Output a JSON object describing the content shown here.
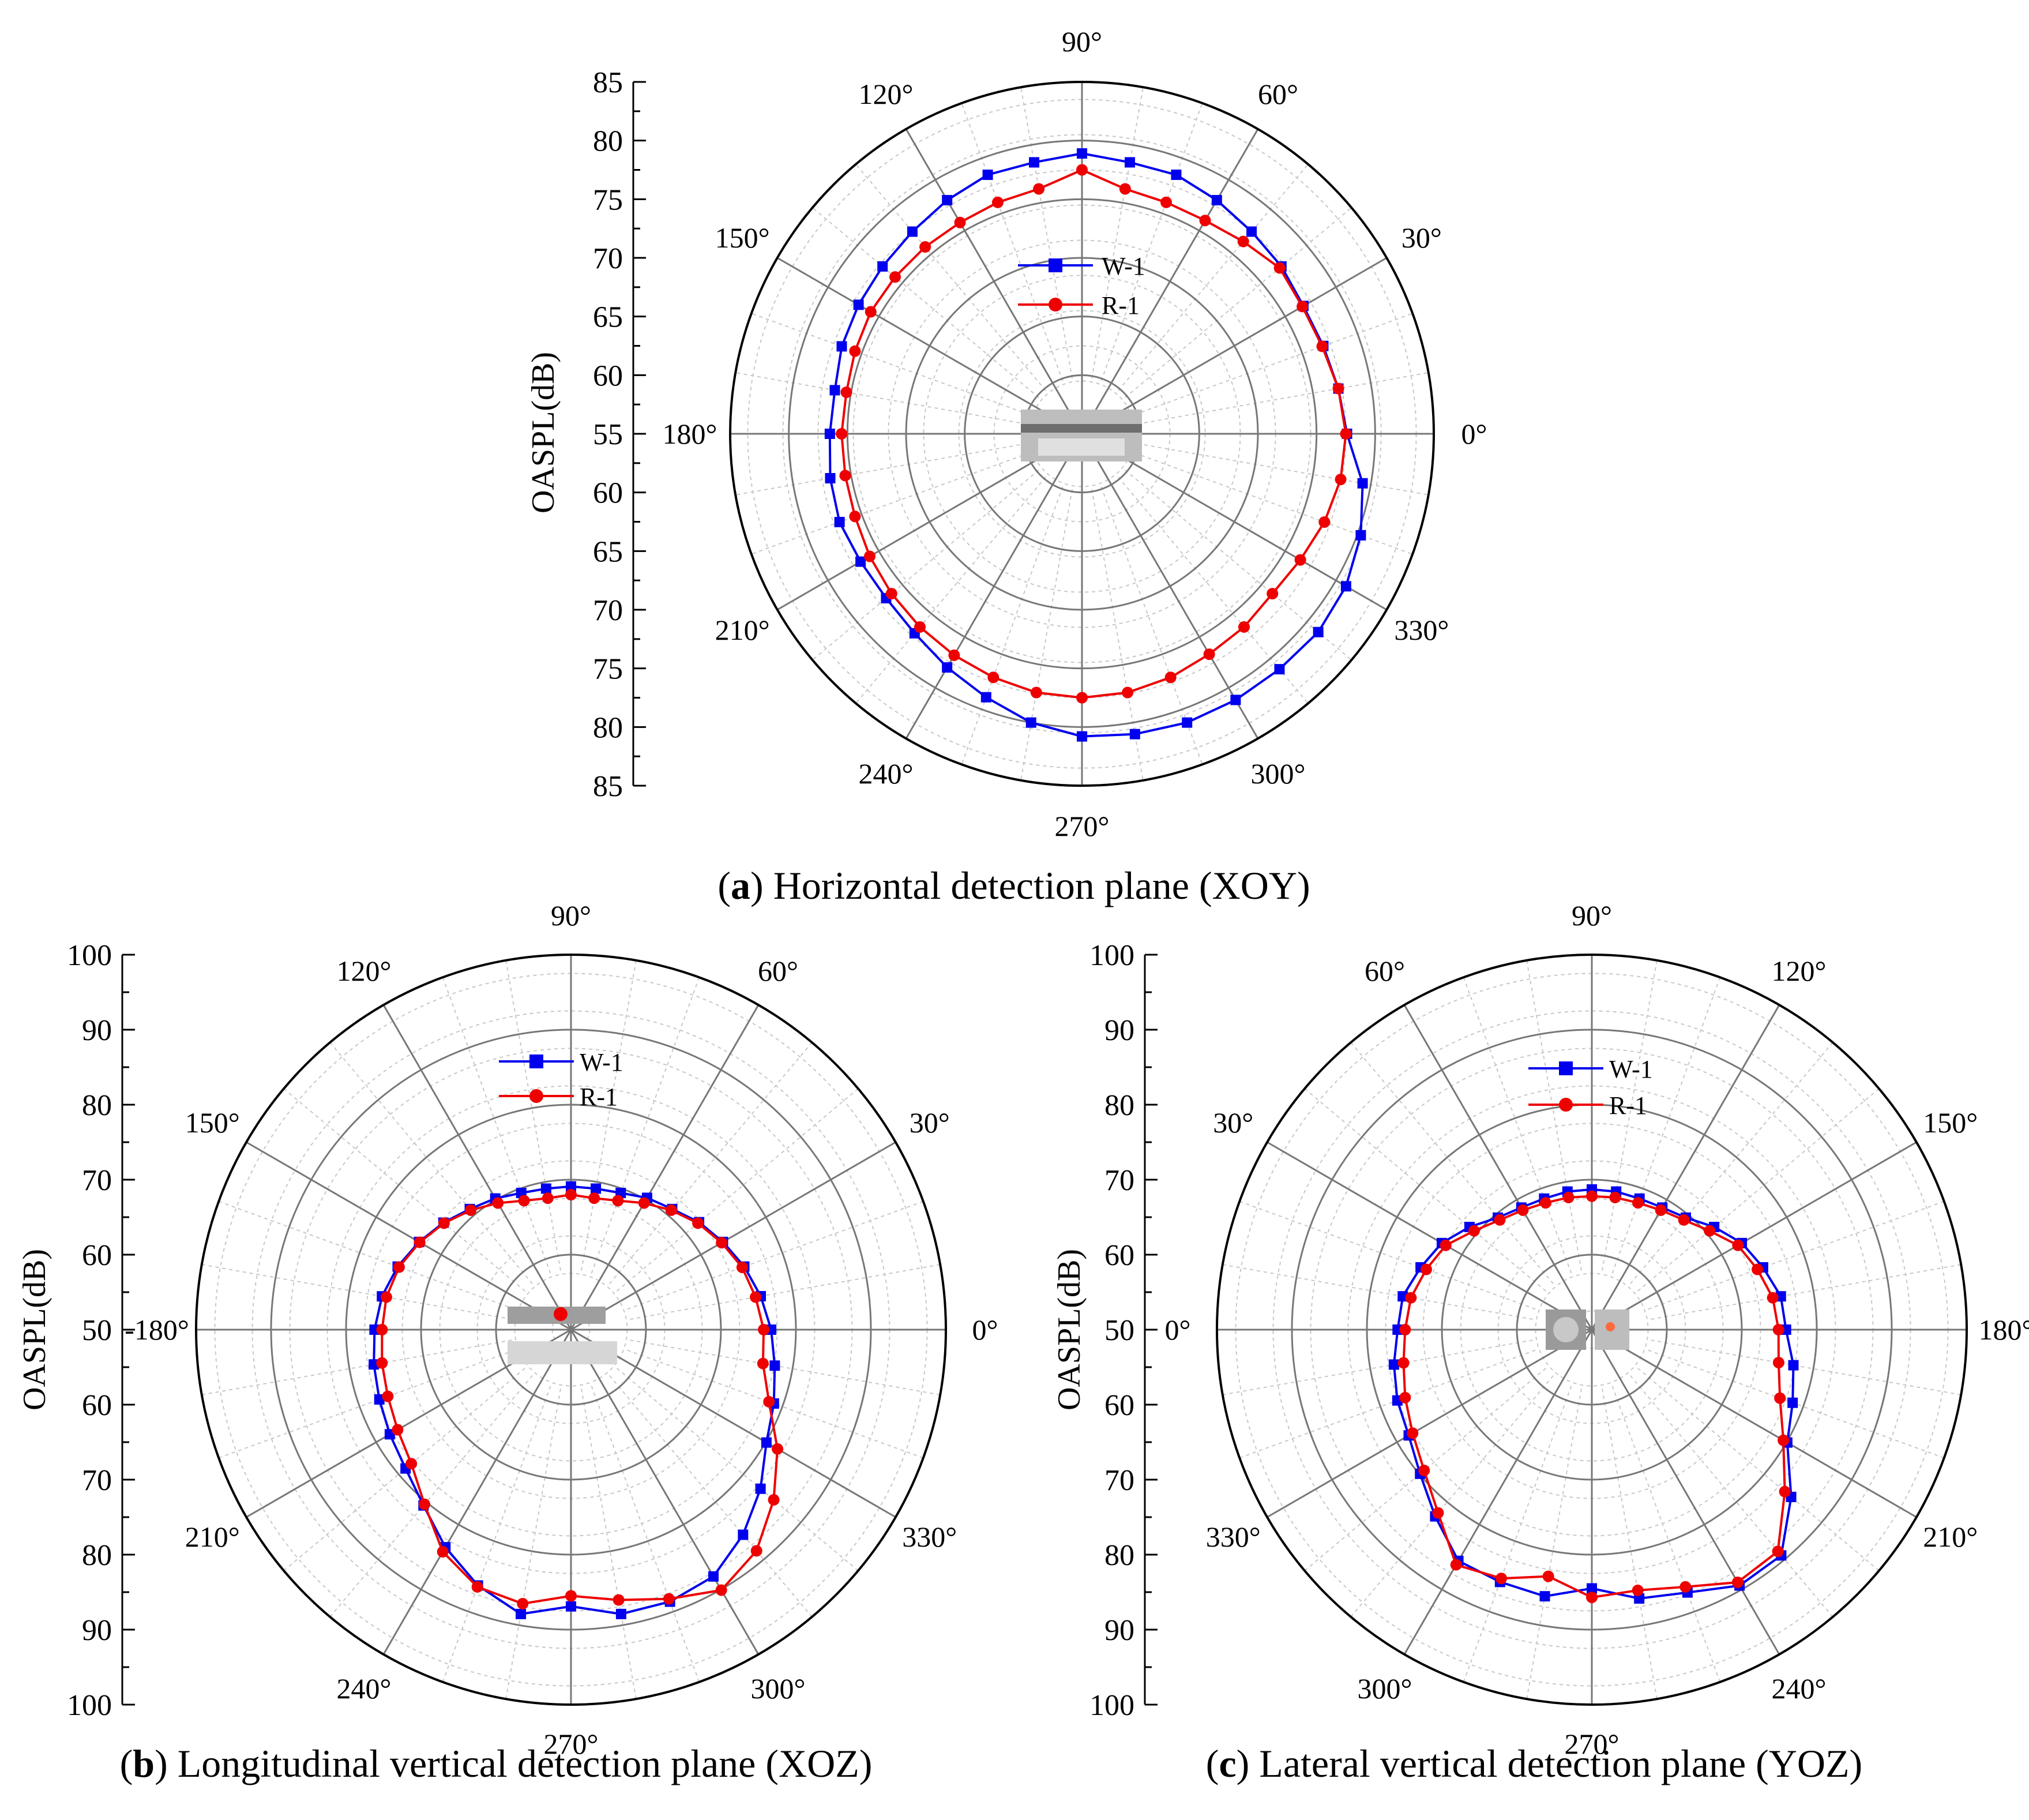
{
  "chart_data": [
    {
      "id": "a",
      "type": "polar-line",
      "caption_letter": "a",
      "caption_text": "Horizontal detection plane (XOY)",
      "ylabel": "OASPL(dB)",
      "r_min": 55,
      "r_max": 85,
      "axis_ticks_top": [
        "85",
        "80",
        "75",
        "70",
        "65",
        "60",
        "55"
      ],
      "axis_ticks_bottom": [
        "60",
        "65",
        "70",
        "75",
        "80",
        "85"
      ],
      "grid_rings": [
        60,
        65,
        70,
        75,
        80
      ],
      "angle_labels": [
        {
          "angle": 0,
          "text": "0°"
        },
        {
          "angle": 30,
          "text": "30°"
        },
        {
          "angle": 60,
          "text": "60°"
        },
        {
          "angle": 90,
          "text": "90°"
        },
        {
          "angle": 120,
          "text": "120°"
        },
        {
          "angle": 150,
          "text": "150°"
        },
        {
          "angle": 180,
          "text": "180°"
        },
        {
          "angle": 210,
          "text": "210°"
        },
        {
          "angle": 240,
          "text": "240°"
        },
        {
          "angle": 270,
          "text": "270°"
        },
        {
          "angle": 300,
          "text": "300°"
        },
        {
          "angle": 330,
          "text": "330°"
        }
      ],
      "legend": [
        "W-1",
        "R-1"
      ],
      "series": [
        {
          "name": "W-1",
          "color": "#0000ee",
          "marker": "square",
          "angles": [
            0,
            10,
            20,
            30,
            40,
            50,
            60,
            70,
            80,
            90,
            100,
            110,
            120,
            130,
            140,
            150,
            160,
            170,
            180,
            190,
            200,
            210,
            220,
            230,
            240,
            250,
            260,
            270,
            280,
            290,
            300,
            310,
            320,
            330,
            340,
            350
          ],
          "values": [
            77.6,
            77.2,
            76.9,
            76.8,
            77.2,
            77.5,
            78.0,
            78.5,
            78.5,
            78.9,
            78.5,
            78.5,
            78.0,
            77.5,
            77.2,
            77.0,
            76.8,
            76.4,
            76.5,
            76.8,
            77.0,
            76.8,
            76.8,
            77.2,
            78.0,
            78.9,
            80.0,
            80.8,
            81.0,
            81.2,
            81.2,
            81.2,
            81.3,
            81.0,
            80.3,
            79.3
          ]
        },
        {
          "name": "R-1",
          "color": "#ee0000",
          "marker": "circle",
          "angles": [
            0,
            10,
            20,
            30,
            40,
            50,
            60,
            70,
            80,
            90,
            100,
            110,
            120,
            130,
            140,
            150,
            160,
            170,
            180,
            190,
            200,
            210,
            220,
            230,
            240,
            250,
            260,
            270,
            280,
            290,
            300,
            310,
            320,
            330,
            340,
            350
          ],
          "values": [
            77.5,
            77.2,
            76.8,
            76.7,
            77.0,
            76.4,
            76.0,
            76.0,
            76.2,
            77.5,
            76.2,
            76.0,
            75.8,
            75.8,
            75.8,
            75.8,
            75.6,
            75.4,
            75.5,
            75.5,
            75.6,
            75.9,
            76.2,
            76.5,
            76.8,
            77.1,
            77.4,
            77.5,
            77.4,
            77.1,
            76.7,
            76.5,
            76.2,
            76.5,
            77.0,
            77.4
          ]
        }
      ]
    },
    {
      "id": "b",
      "type": "polar-line",
      "caption_letter": "b",
      "caption_text": "Longitudinal vertical detection plane (XOZ)",
      "ylabel": "OASPL(dB)",
      "r_min": 50,
      "r_max": 100,
      "axis_ticks_top": [
        "100",
        "90",
        "80",
        "70",
        "60",
        "50"
      ],
      "axis_ticks_bottom": [
        "60",
        "70",
        "80",
        "90",
        "100"
      ],
      "grid_rings": [
        60,
        70,
        80,
        90
      ],
      "angle_labels": [
        {
          "angle": 0,
          "text": "0°"
        },
        {
          "angle": 30,
          "text": "30°"
        },
        {
          "angle": 60,
          "text": "60°"
        },
        {
          "angle": 90,
          "text": "90°"
        },
        {
          "angle": 120,
          "text": "120°"
        },
        {
          "angle": 150,
          "text": "150°"
        },
        {
          "angle": 180,
          "text": "-180°"
        },
        {
          "angle": 210,
          "text": "210°"
        },
        {
          "angle": 240,
          "text": "240°"
        },
        {
          "angle": 270,
          "text": "270°"
        },
        {
          "angle": 300,
          "text": "300°"
        },
        {
          "angle": 330,
          "text": "330°"
        }
      ],
      "legend": [
        "W-1",
        "R-1"
      ],
      "series": [
        {
          "name": "W-1",
          "color": "#0000ee",
          "marker": "square",
          "angles": [
            0,
            10,
            20,
            30,
            40,
            50,
            60,
            70,
            80,
            90,
            100,
            110,
            120,
            130,
            140,
            150,
            160,
            170,
            180,
            190,
            200,
            210,
            220,
            230,
            240,
            250,
            260,
            270,
            280,
            290,
            300,
            310,
            320,
            330,
            340,
            350
          ],
          "values": [
            76.7,
            75.7,
            74.6,
            73.4,
            72.3,
            71.0,
            70.3,
            69.4,
            69.1,
            69.1,
            69.1,
            69.4,
            70.2,
            71.0,
            72.2,
            73.4,
            74.6,
            75.6,
            76.2,
            76.7,
            77.2,
            77.9,
            78.8,
            80.6,
            83.5,
            86.3,
            88.5,
            86.9,
            88.5,
            88.6,
            88.0,
            85.7,
            83.0,
            80.1,
            78.8,
            77.6
          ]
        },
        {
          "name": "R-1",
          "color": "#ee0000",
          "marker": "circle",
          "angles": [
            0,
            10,
            20,
            30,
            40,
            50,
            60,
            70,
            80,
            90,
            100,
            110,
            120,
            130,
            140,
            150,
            160,
            170,
            180,
            190,
            200,
            210,
            220,
            230,
            240,
            250,
            260,
            270,
            280,
            290,
            300,
            310,
            320,
            330,
            340,
            350
          ],
          "values": [
            75.7,
            75.0,
            74.3,
            73.2,
            72.1,
            70.8,
            69.5,
            68.3,
            67.8,
            68.0,
            67.8,
            68.3,
            69.5,
            70.8,
            72.1,
            73.3,
            74.4,
            75.0,
            75.2,
            75.6,
            76.0,
            76.7,
            77.8,
            80.4,
            84.2,
            86.5,
            87.1,
            85.5,
            86.6,
            88.2,
            90.1,
            88.5,
            85.3,
            81.8,
            78.1,
            76.0
          ]
        }
      ]
    },
    {
      "id": "c",
      "type": "polar-line",
      "caption_letter": "c",
      "caption_text": "Lateral vertical detection plane (YOZ)",
      "ylabel": "OASPL(dB)",
      "r_min": 50,
      "r_max": 100,
      "axis_ticks_top": [
        "100",
        "90",
        "80",
        "70",
        "60",
        "50"
      ],
      "axis_ticks_bottom": [
        "60",
        "70",
        "80",
        "90",
        "100"
      ],
      "grid_rings": [
        60,
        70,
        80,
        90
      ],
      "angle_labels": [
        {
          "angle": 0,
          "text": "180°"
        },
        {
          "angle": 30,
          "text": "150°"
        },
        {
          "angle": 60,
          "text": "120°"
        },
        {
          "angle": 90,
          "text": "90°"
        },
        {
          "angle": 120,
          "text": "60°"
        },
        {
          "angle": 150,
          "text": "30°"
        },
        {
          "angle": 180,
          "text": "0°"
        },
        {
          "angle": 210,
          "text": "330°"
        },
        {
          "angle": 240,
          "text": "300°"
        },
        {
          "angle": 270,
          "text": "270°"
        },
        {
          "angle": 300,
          "text": "240°"
        },
        {
          "angle": 330,
          "text": "210°"
        }
      ],
      "legend": [
        "W-1",
        "R-1"
      ],
      "series": [
        {
          "name": "W-1",
          "color": "#0000ee",
          "marker": "square",
          "angles": [
            0,
            10,
            20,
            30,
            40,
            50,
            60,
            70,
            80,
            90,
            100,
            110,
            120,
            130,
            140,
            150,
            160,
            170,
            180,
            190,
            200,
            210,
            220,
            230,
            240,
            250,
            260,
            270,
            280,
            290,
            300,
            310,
            320,
            330,
            340,
            350
          ],
          "values": [
            75.9,
            75.6,
            74.3,
            73.1,
            71.3,
            69.5,
            68.8,
            68.6,
            68.7,
            68.7,
            68.7,
            68.6,
            68.8,
            69.5,
            71.3,
            73.1,
            74.3,
            75.6,
            75.9,
            76.8,
            77.6,
            78.2,
            79.9,
            82.5,
            85.6,
            85.8,
            86.1,
            84.5,
            86.4,
            87.3,
            89.4,
            89.3,
            84.7,
            80.1,
            78.5,
            77.3
          ]
        },
        {
          "name": "R-1",
          "color": "#ee0000",
          "marker": "circle",
          "angles": [
            0,
            10,
            20,
            30,
            40,
            50,
            60,
            70,
            80,
            90,
            100,
            110,
            120,
            130,
            140,
            150,
            160,
            170,
            180,
            190,
            200,
            210,
            220,
            230,
            240,
            250,
            260,
            270,
            280,
            290,
            300,
            310,
            320,
            330,
            340,
            350
          ],
          "values": [
            74.9,
            74.5,
            73.5,
            72.5,
            70.5,
            69.1,
            68.4,
            68.0,
            67.9,
            67.8,
            67.9,
            68.0,
            68.4,
            69.1,
            70.5,
            72.5,
            73.5,
            74.5,
            74.9,
            75.5,
            76.5,
            77.6,
            79.2,
            81.9,
            86.2,
            85.3,
            83.4,
            85.7,
            85.3,
            86.5,
            88.9,
            88.6,
            83.6,
            79.5,
            76.7,
            75.3
          ]
        }
      ]
    }
  ]
}
